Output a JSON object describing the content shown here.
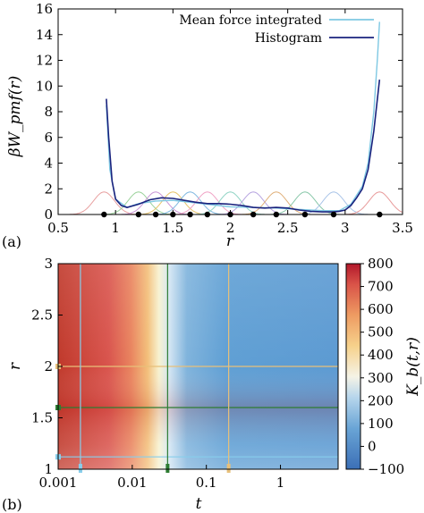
{
  "chart_data": [
    {
      "panel_label": "(a)",
      "type": "line",
      "xlabel": "r",
      "ylabel": "βW_pmf(r)",
      "xlim": [
        0.5,
        3.5
      ],
      "ylim": [
        0,
        16
      ],
      "xticks": [
        "0.5",
        "1",
        "1.5",
        "2",
        "2.5",
        "3",
        "3.5"
      ],
      "yticks": [
        "0",
        "2",
        "4",
        "6",
        "8",
        "10",
        "12",
        "14",
        "16"
      ],
      "legend_position": "top-right",
      "series": [
        {
          "name": "Mean force integrated",
          "color": "#7ec8e3",
          "x": [
            0.92,
            0.95,
            1.0,
            1.1,
            1.2,
            1.35,
            1.5,
            1.65,
            1.8,
            2.0,
            2.2,
            2.4,
            2.6,
            2.8,
            2.95,
            3.05,
            3.15,
            3.2,
            3.25,
            3.28,
            3.3
          ],
          "y": [
            8.5,
            3.5,
            1.2,
            0.55,
            0.85,
            1.05,
            1.1,
            0.95,
            0.8,
            0.6,
            0.55,
            0.5,
            0.4,
            0.3,
            0.3,
            0.8,
            2.2,
            4.0,
            8.0,
            12.0,
            15.0
          ]
        },
        {
          "name": "Histogram",
          "color": "#1a237e",
          "x": [
            0.92,
            0.94,
            0.97,
            1.0,
            1.05,
            1.1,
            1.2,
            1.3,
            1.4,
            1.5,
            1.6,
            1.7,
            1.8,
            1.9,
            2.0,
            2.1,
            2.2,
            2.3,
            2.4,
            2.5,
            2.6,
            2.7,
            2.8,
            2.9,
            2.95,
            3.0,
            3.05,
            3.1,
            3.15,
            3.2,
            3.25,
            3.3
          ],
          "y": [
            9.0,
            6.0,
            2.6,
            1.2,
            0.7,
            0.55,
            0.8,
            1.15,
            1.3,
            1.25,
            1.1,
            0.95,
            0.85,
            0.85,
            0.8,
            0.7,
            0.55,
            0.5,
            0.55,
            0.5,
            0.35,
            0.25,
            0.2,
            0.2,
            0.25,
            0.35,
            0.7,
            1.3,
            2.0,
            3.5,
            6.5,
            10.5
          ]
        }
      ],
      "window_centers": [
        0.9,
        1.2,
        1.35,
        1.5,
        1.65,
        1.8,
        2.0,
        2.2,
        2.4,
        2.65,
        2.9,
        3.3
      ],
      "window_colors": [
        "#e8a0a0",
        "#9ad29a",
        "#c994d6",
        "#e6c36a",
        "#7fb8e0",
        "#f0a3c6",
        "#8fd3c4",
        "#b7a4e0",
        "#e0b07a",
        "#88c7a9",
        "#a9c4e8",
        "#e89a9a"
      ]
    },
    {
      "panel_label": "(b)",
      "type": "heatmap",
      "xlabel": "t",
      "ylabel": "r",
      "x_scale": "log",
      "xlim": [
        0.001,
        6
      ],
      "ylim": [
        1,
        3
      ],
      "xticks": [
        "0.001",
        "0.01",
        "0.1",
        "1"
      ],
      "yticks": [
        "1",
        "1.5",
        "2",
        "2.5",
        "3"
      ],
      "colorbar_label": "K_b(t,r)",
      "colorbar_range": [
        -100,
        800
      ],
      "colorbar_ticks": [
        "−100",
        "0",
        "100",
        "200",
        "300",
        "400",
        "500",
        "600",
        "700",
        "800"
      ],
      "hlines": [
        {
          "r": 1.12,
          "color": "#87ceeb"
        },
        {
          "r": 1.6,
          "color": "#2e7d32"
        },
        {
          "r": 2.0,
          "color": "#e8c07a"
        }
      ],
      "vlines": [
        {
          "t": 0.002,
          "color": "#87ceeb"
        },
        {
          "t": 0.03,
          "color": "#2e7d32"
        },
        {
          "t": 0.2,
          "color": "#e8c07a"
        }
      ]
    }
  ]
}
